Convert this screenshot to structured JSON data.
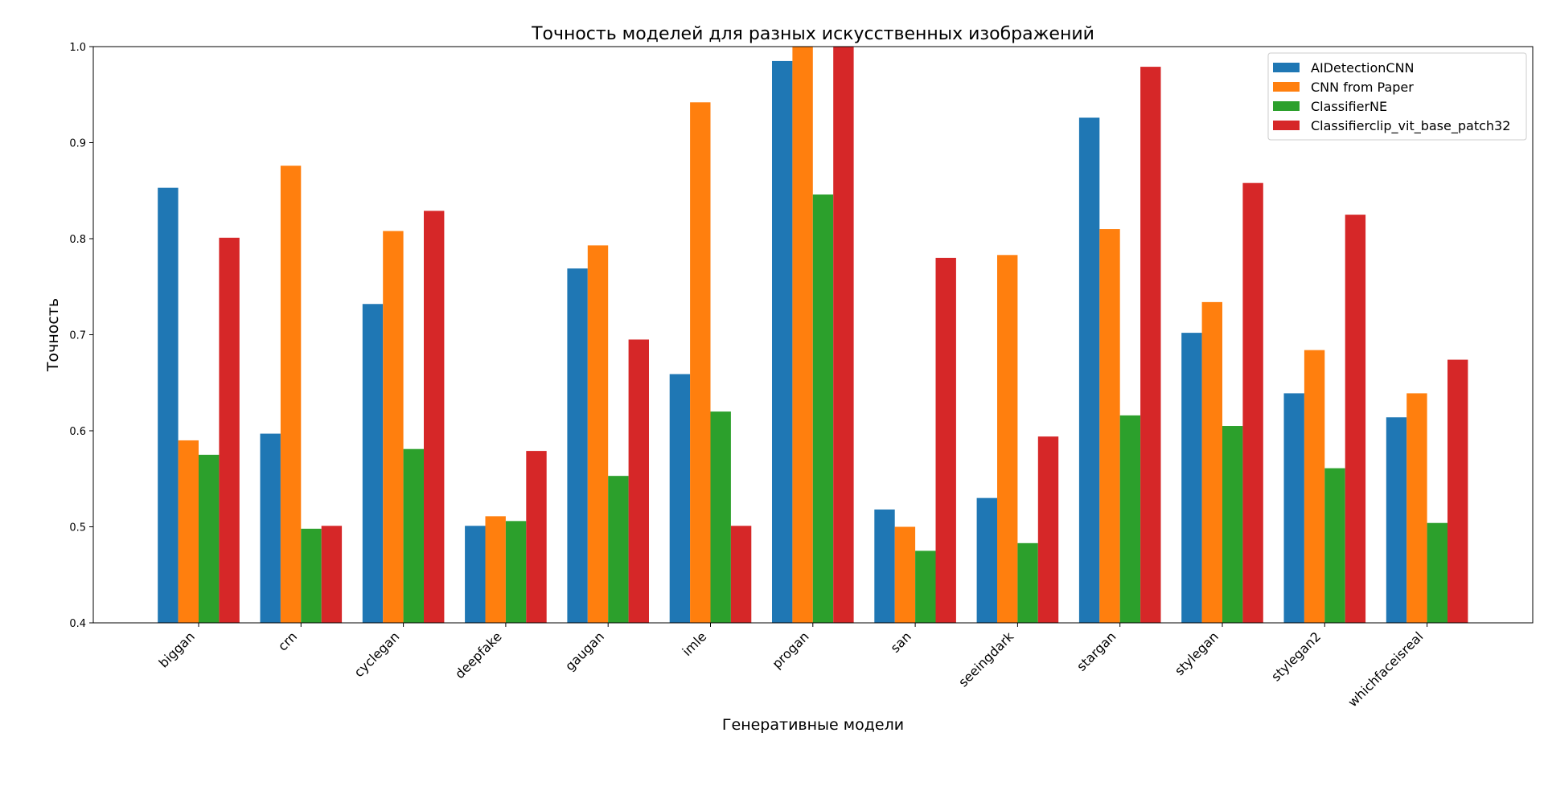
{
  "chart_data": {
    "type": "bar",
    "title": "Точность моделей для разных искусственных изображений",
    "xlabel": "Генеративные модели",
    "ylabel": "Точность",
    "ylim": [
      0.4,
      1.0
    ],
    "yticks": [
      "0.4",
      "0.5",
      "0.6",
      "0.7",
      "0.8",
      "0.9",
      "1.0"
    ],
    "grid": false,
    "legend_position": "top-right",
    "categories": [
      "biggan",
      "crn",
      "cyclegan",
      "deepfake",
      "gaugan",
      "imle",
      "progan",
      "san",
      "seeingdark",
      "stargan",
      "stylegan",
      "stylegan2",
      "whichfaceisreal"
    ],
    "series": [
      {
        "name": "AIDetectionCNN",
        "color": "#1f77b4",
        "values": [
          0.853,
          0.597,
          0.732,
          0.501,
          0.769,
          0.659,
          0.985,
          0.518,
          0.53,
          0.926,
          0.702,
          0.639,
          0.614
        ]
      },
      {
        "name": "CNN from Paper",
        "color": "#ff7f0e",
        "values": [
          0.59,
          0.876,
          0.808,
          0.511,
          0.793,
          0.942,
          1.0,
          0.5,
          0.783,
          0.81,
          0.734,
          0.684,
          0.639
        ]
      },
      {
        "name": "ClassifierNE",
        "color": "#2ca02c",
        "values": [
          0.575,
          0.498,
          0.581,
          0.506,
          0.553,
          0.62,
          0.846,
          0.475,
          0.483,
          0.616,
          0.605,
          0.561,
          0.504
        ]
      },
      {
        "name": "Classifierclip_vit_base_patch32",
        "color": "#d62728",
        "values": [
          0.801,
          0.501,
          0.829,
          0.579,
          0.695,
          0.501,
          1.0,
          0.78,
          0.594,
          0.979,
          0.858,
          0.825,
          0.674
        ]
      }
    ]
  }
}
